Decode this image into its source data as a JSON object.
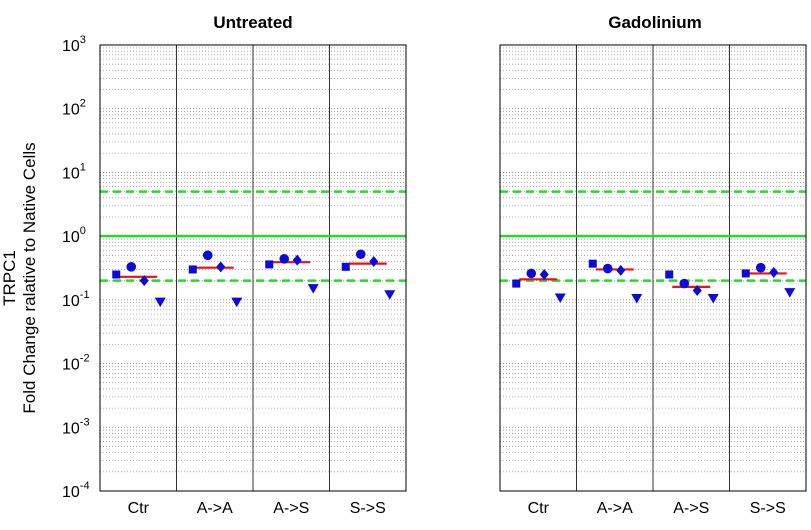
{
  "chart_data": {
    "type": "scatter",
    "ylabel_line1": "TRPC1",
    "ylabel_line2": "Fold Change ralative to Native Cells",
    "y_scale": "log",
    "ylim": [
      0.0001,
      1000
    ],
    "yticks": [
      {
        "base": "10",
        "exp": "3",
        "value": 1000
      },
      {
        "base": "10",
        "exp": "2",
        "value": 100
      },
      {
        "base": "10",
        "exp": "1",
        "value": 10
      },
      {
        "base": "10",
        "exp": "0",
        "value": 1
      },
      {
        "base": "10",
        "exp": "-1",
        "value": 0.1
      },
      {
        "base": "10",
        "exp": "-2",
        "value": 0.01
      },
      {
        "base": "10",
        "exp": "-3",
        "value": 0.001
      },
      {
        "base": "10",
        "exp": "-4",
        "value": 0.0001
      }
    ],
    "categories": [
      "Ctr",
      "A->A",
      "A->S",
      "S->S"
    ],
    "grid": true,
    "reference_lines": [
      {
        "value": 5,
        "style": "dashed",
        "color": "#22dd22"
      },
      {
        "value": 1,
        "style": "solid",
        "color": "#22dd22"
      },
      {
        "value": 0.2,
        "style": "dashed",
        "color": "#22dd22"
      }
    ],
    "marker_color": "#0a0adc",
    "median_color": "#ee1111",
    "panels": [
      {
        "title": "Untreated",
        "groups": [
          {
            "category": "Ctr",
            "square": 0.25,
            "circle": 0.33,
            "diamond": 0.2,
            "triangle": 0.092,
            "median": 0.23
          },
          {
            "category": "A->A",
            "square": 0.3,
            "circle": 0.5,
            "diamond": 0.33,
            "triangle": 0.092,
            "median": 0.32
          },
          {
            "category": "A->S",
            "square": 0.36,
            "circle": 0.44,
            "diamond": 0.42,
            "triangle": 0.15,
            "median": 0.39
          },
          {
            "category": "S->S",
            "square": 0.33,
            "circle": 0.52,
            "diamond": 0.4,
            "triangle": 0.12,
            "median": 0.37
          }
        ]
      },
      {
        "title": "Gadolinium",
        "groups": [
          {
            "category": "Ctr",
            "square": 0.18,
            "circle": 0.26,
            "diamond": 0.25,
            "triangle": 0.107,
            "median": 0.21
          },
          {
            "category": "A->A",
            "square": 0.37,
            "circle": 0.31,
            "diamond": 0.29,
            "triangle": 0.105,
            "median": 0.3
          },
          {
            "category": "A->S",
            "square": 0.25,
            "circle": 0.18,
            "diamond": 0.14,
            "triangle": 0.105,
            "median": 0.16
          },
          {
            "category": "S->S",
            "square": 0.26,
            "circle": 0.32,
            "diamond": 0.27,
            "triangle": 0.13,
            "median": 0.26
          }
        ]
      }
    ]
  }
}
